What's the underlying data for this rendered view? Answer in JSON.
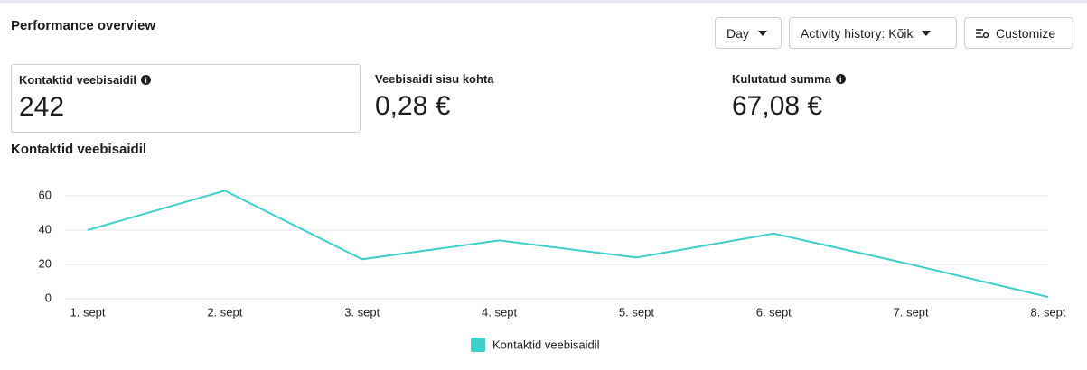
{
  "header": {
    "title": "Performance overview",
    "buttons": [
      "Day",
      "Activity history: Kõik",
      "Customize"
    ]
  },
  "metrics": [
    {
      "label": "Kontaktid veebisaidil",
      "value": "242"
    },
    {
      "label": "Veebisaidi sisu kohta",
      "value": "0,28 €"
    },
    {
      "label": "Kulutatud summa",
      "value": "67,08 €"
    }
  ],
  "chart_data": {
    "type": "line",
    "title": "Kontaktid veebisaidil",
    "categories": [
      "1. sept",
      "2. sept",
      "3. sept",
      "4. sept",
      "5. sept",
      "6. sept",
      "7. sept",
      "8. sept"
    ],
    "series": [
      {
        "name": "Kontaktid veebisaidil",
        "color": "#3ecfcb",
        "values": [
          40,
          63,
          23,
          34,
          24,
          38,
          20,
          1
        ]
      }
    ],
    "ylim": [
      0,
      70
    ],
    "yticks": [
      0,
      20,
      40,
      60
    ],
    "grid": true
  }
}
